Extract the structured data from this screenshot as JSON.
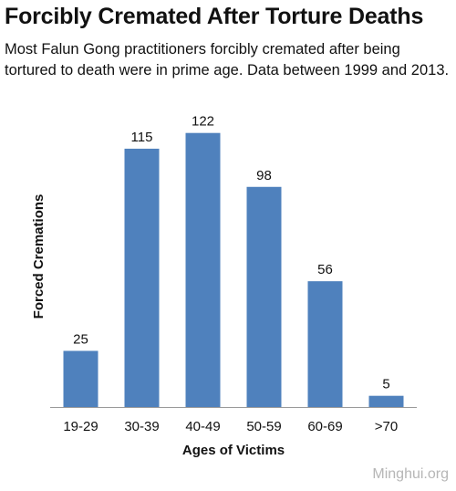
{
  "header": {
    "title": "Forcibly Cremated After Torture Deaths",
    "subtitle": "Most Falun Gong practitioners forcibly cremated after being tortured to death were in prime age. Data between 1999 and 2013."
  },
  "watermark": "Minghui.org",
  "colors": {
    "bar": "#4f81bd",
    "axis": "#9a9a9a",
    "text": "#111111",
    "watermark": "#b6b6b6"
  },
  "chart_data": {
    "type": "bar",
    "title": "Forcibly Cremated After Torture Deaths",
    "xlabel": "Ages of Victims",
    "ylabel": "Forced Cremations",
    "categories": [
      "19-29",
      "30-39",
      "40-49",
      "50-59",
      "60-69",
      ">70"
    ],
    "values": [
      25,
      115,
      122,
      98,
      56,
      5
    ],
    "ylim": [
      0,
      130
    ],
    "grid": false,
    "data_labels": true,
    "legend": "none"
  }
}
